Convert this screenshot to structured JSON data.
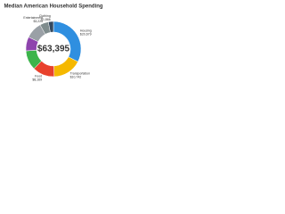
{
  "chart_data": {
    "type": "pie",
    "title": "Median American Household Spending",
    "center_label": "$63,395",
    "categories": [
      "Housing",
      "Transportation",
      "Food",
      null,
      null,
      null,
      "Entertainment",
      "Clothing"
    ],
    "values": [
      20679,
      10742,
      8169,
      7296,
      5177,
      6240,
      3226,
      1866
    ],
    "value_labels": [
      "$20,679",
      "$10,742",
      "$8,169",
      null,
      null,
      null,
      "$3,226",
      "$1,866"
    ],
    "colors": [
      "#2f8fe0",
      "#f5b800",
      "#e8412c",
      "#3cb44b",
      "#8e44ad",
      "#9aa0a6",
      "#7f8c8d",
      "#34495e"
    ],
    "donut": true
  }
}
